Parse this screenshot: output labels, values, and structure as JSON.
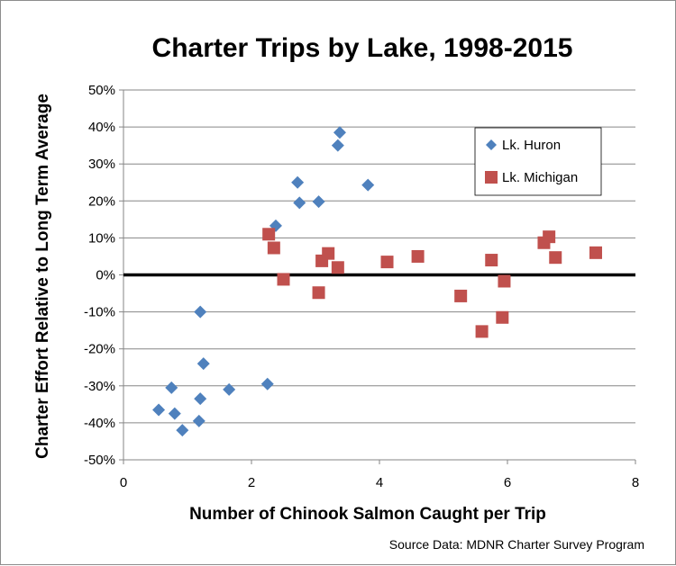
{
  "chart_data": {
    "type": "scatter",
    "title": "Charter Trips by Lake, 1998-2015",
    "xlabel": "Number of Chinook Salmon Caught per Trip",
    "ylabel": "Charter Effort Relative to Long Term Average",
    "xlim": [
      0,
      8
    ],
    "ylim": [
      -50,
      50
    ],
    "x_ticks": [
      0,
      2,
      4,
      6,
      8
    ],
    "x_tick_labels": [
      "0",
      "2",
      "4",
      "6",
      "8"
    ],
    "y_ticks": [
      50,
      40,
      30,
      20,
      10,
      0,
      -10,
      -20,
      -30,
      -40,
      -50
    ],
    "y_tick_labels": [
      "50%",
      "40%",
      "30%",
      "20%",
      "10%",
      "0%",
      "-10%",
      "-20%",
      "-30%",
      "-40%",
      "-50%"
    ],
    "grid": "horizontal",
    "zero_line": true,
    "legend_position": "top-right",
    "series": [
      {
        "name": "Lk. Huron",
        "marker": "diamond",
        "color": "#4f81bd",
        "x": [
          0.55,
          0.75,
          0.8,
          0.92,
          1.18,
          1.2,
          1.2,
          1.25,
          1.65,
          2.25,
          2.38,
          2.72,
          2.75,
          3.05,
          3.35,
          3.38,
          3.82
        ],
        "y": [
          -36.5,
          -30.5,
          -37.5,
          -42,
          -39.5,
          -10,
          -33.5,
          -24,
          -31,
          -29.5,
          13.3,
          25,
          19.5,
          19.8,
          35,
          38.5,
          24.3
        ]
      },
      {
        "name": "Lk. Michigan",
        "marker": "square",
        "color": "#c0504d",
        "x": [
          2.27,
          2.35,
          2.5,
          3.05,
          3.1,
          3.2,
          3.35,
          4.12,
          4.6,
          5.27,
          5.6,
          5.75,
          5.92,
          5.95,
          6.57,
          6.65,
          6.75,
          7.38
        ],
        "y": [
          11,
          7.3,
          -1.2,
          -4.8,
          3.8,
          5.8,
          2,
          3.5,
          5,
          -5.7,
          -15.3,
          4,
          -11.5,
          -1.7,
          8.7,
          10.3,
          4.7,
          6
        ]
      }
    ],
    "source_note": "Source Data: MDNR Charter Survey Program"
  }
}
